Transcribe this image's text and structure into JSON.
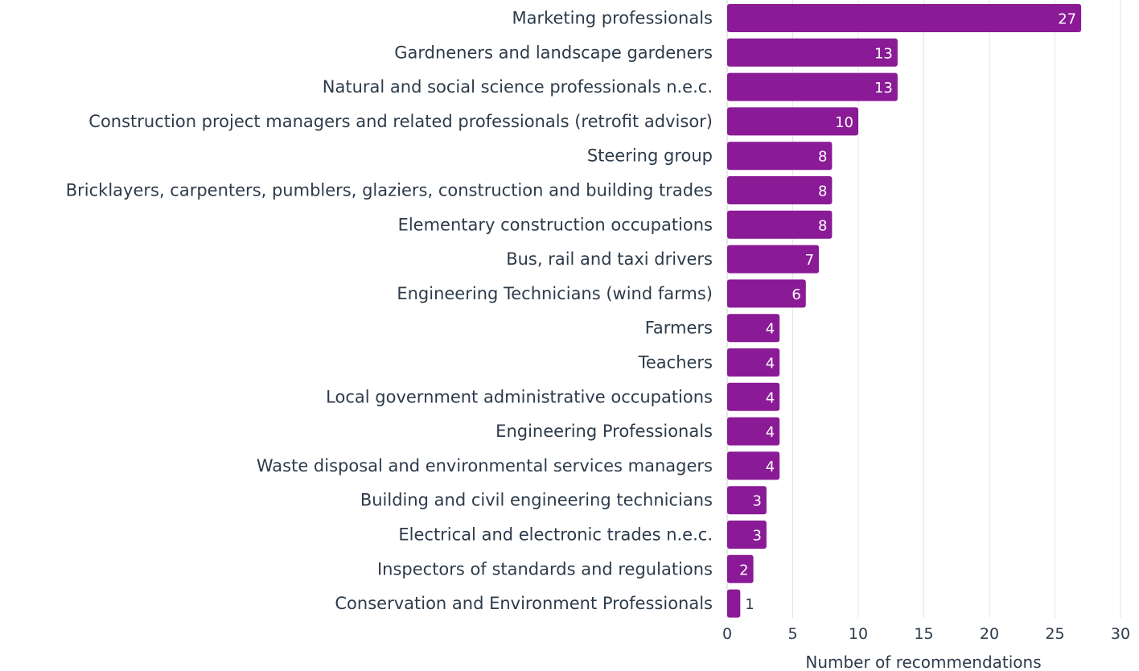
{
  "chart_data": {
    "type": "bar",
    "orientation": "horizontal",
    "categories": [
      "Marketing professionals",
      "Gardneners and landscape gardeners",
      "Natural and social science professionals n.e.c.",
      "Construction project managers and related professionals (retrofit advisor)",
      "Steering group",
      "Bricklayers, carpenters, pumblers, glaziers, construction and building trades",
      "Elementary construction occupations",
      "Bus, rail and taxi drivers",
      "Engineering Technicians (wind farms)",
      "Farmers",
      "Teachers",
      "Local government administrative occupations",
      "Engineering Professionals",
      "Waste disposal and environmental services managers",
      "Building and civil engineering technicians",
      "Electrical and electronic trades n.e.c.",
      "Inspectors of standards and regulations",
      "Conservation and Environment Professionals"
    ],
    "values": [
      27,
      13,
      13,
      10,
      8,
      8,
      8,
      7,
      6,
      4,
      4,
      4,
      4,
      4,
      3,
      3,
      2,
      1
    ],
    "xlabel": "Number of recommendations",
    "ylabel": "",
    "xlim": [
      0,
      30
    ],
    "xticks": [
      "0",
      "5",
      "10",
      "15",
      "20",
      "25",
      "30"
    ],
    "grid": "vertical",
    "bar_color": "#8a1a96",
    "label_inside_color": "#ffffff",
    "label_outside_color": "#2d3b4a"
  }
}
